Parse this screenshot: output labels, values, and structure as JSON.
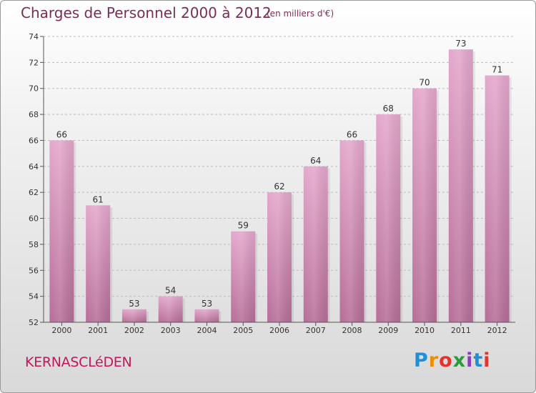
{
  "chart_data": {
    "type": "bar",
    "title": "Charges de Personnel 2000 à 2012",
    "subtitle": "(en milliers d'€)",
    "categories": [
      "2000",
      "2001",
      "2002",
      "2003",
      "2004",
      "2005",
      "2006",
      "2007",
      "2008",
      "2009",
      "2010",
      "2011",
      "2012"
    ],
    "values": [
      66,
      61,
      53,
      54,
      53,
      59,
      62,
      64,
      66,
      68,
      70,
      73,
      71
    ],
    "ylim": [
      52,
      74
    ],
    "yticks": [
      52,
      54,
      56,
      58,
      60,
      62,
      64,
      66,
      68,
      70,
      72,
      74
    ],
    "grid": true,
    "bar_color": "#d47fae",
    "xlabel": "",
    "ylabel": ""
  },
  "footer": {
    "commune": "KERNASCLéDEN",
    "brand": {
      "letters": [
        "P",
        "r",
        "o",
        "x",
        "i",
        "t",
        "i"
      ],
      "colors": [
        "#1f8fd6",
        "#f08c00",
        "#e5332a",
        "#2a9d3a",
        "#8c3fb5",
        "#1f8fd6",
        "#e5332a"
      ]
    }
  }
}
